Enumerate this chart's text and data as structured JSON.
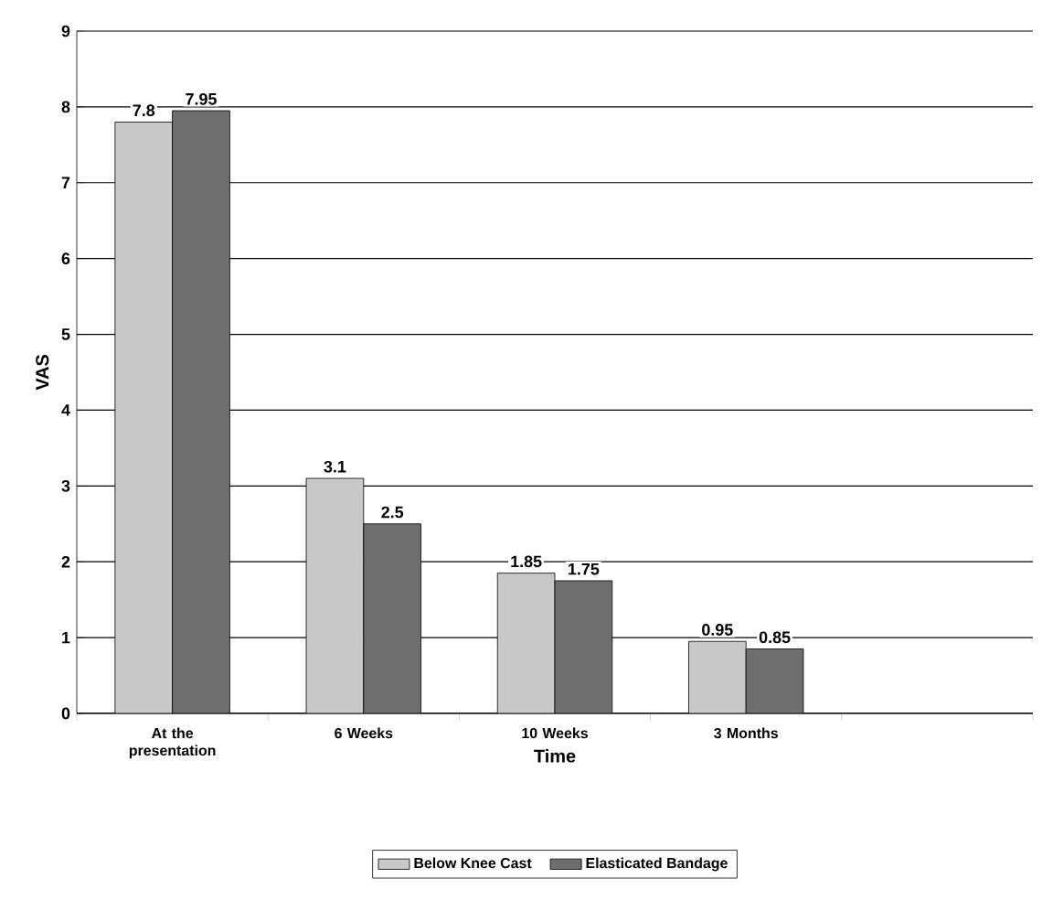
{
  "chart_data": {
    "type": "bar",
    "xlabel": "Time",
    "ylabel": "VAS",
    "categories": [
      "At the presentation",
      "6 Weeks",
      "10 Weeks",
      "3 Months",
      null
    ],
    "series": [
      {
        "name": "Below Knee Cast",
        "color": "#c8c8c8",
        "values": [
          7.8,
          3.1,
          1.85,
          0.95,
          null
        ]
      },
      {
        "name": "Elasticated Bandage",
        "color": "#6e6e6e",
        "values": [
          7.95,
          2.5,
          1.75,
          0.85,
          null
        ]
      }
    ],
    "ylim": [
      0,
      9
    ],
    "yticks": [
      0,
      1,
      2,
      3,
      4,
      5,
      6,
      7,
      8,
      9
    ],
    "grid": "y",
    "legend": "bottom",
    "data_labels": true
  }
}
